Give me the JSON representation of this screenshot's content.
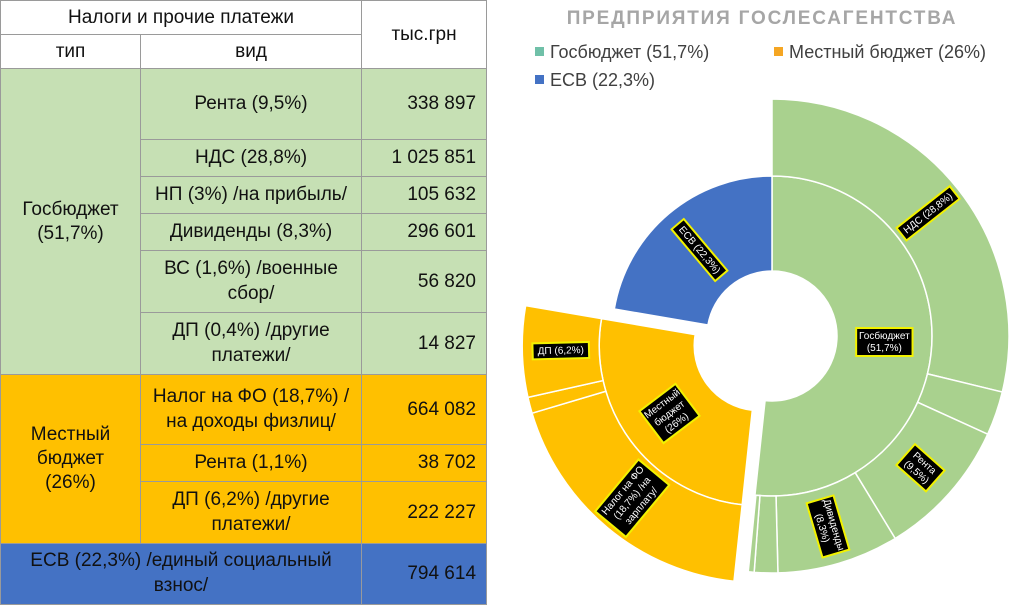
{
  "table": {
    "title": "Налоги и прочие платежи",
    "col_type": "тип",
    "col_kind": "вид",
    "col_value": "тыс.грн",
    "groups": [
      {
        "type": "Госбюджет (51,7%)",
        "color": "#c6e0b4",
        "rows": [
          {
            "kind": "Рента (9,5%)",
            "value": "338 897"
          },
          {
            "kind": "НДС (28,8%)",
            "value": "1 025 851"
          },
          {
            "kind": "НП (3%) /на прибыль/",
            "value": "105 632"
          },
          {
            "kind": "Дивиденды (8,3%)",
            "value": "296 601"
          },
          {
            "kind": "ВС (1,6%) /военные сбор/",
            "value": "56 820"
          },
          {
            "kind": "ДП (0,4%) /другие платежи/",
            "value": "14 827"
          }
        ]
      },
      {
        "type": "Местный бюджет (26%)",
        "color": "#ffc000",
        "rows": [
          {
            "kind": "Налог на ФО (18,7%) /на доходы физлиц/",
            "value": "664 082"
          },
          {
            "kind": "Рента (1,1%)",
            "value": "38 702"
          },
          {
            "kind": "ДП (6,2%) /другие платежи/",
            "value": "222 227"
          }
        ]
      }
    ],
    "esv": {
      "label": "ЕСВ (22,3%) /единый социальный взнос/",
      "value": "794 614",
      "color": "#4472c4"
    }
  },
  "chart_data": {
    "type": "sunburst",
    "title": "ПРЕДПРИЯТИЯ ГОСЛЕСАГЕНТСТВА",
    "legend": [
      {
        "name": "Госбюджет (51,7%)",
        "color": "#70c0a8"
      },
      {
        "name": "Местный бюджет (26%)",
        "color": "#f5a623"
      },
      {
        "name": "ЕСВ (22,3%)",
        "color": "#4472c4"
      }
    ],
    "inner": [
      {
        "label": "Госбюджет (51,7%)",
        "value": 51.7,
        "color": "#a9d18e"
      },
      {
        "label": "Местный бюджет (26%)",
        "value": 26,
        "color": "#ffc000"
      },
      {
        "label": "ЕСВ (22,3%)",
        "value": 22.3,
        "color": "#4472c4"
      }
    ],
    "outer": [
      {
        "parent": 0,
        "label": "НДС (28,8%)",
        "value": 28.8
      },
      {
        "parent": 0,
        "label": "",
        "value": 3
      },
      {
        "parent": 0,
        "label": "Рента (9,5%)",
        "value": 9.5
      },
      {
        "parent": 0,
        "label": "Дивиденды (8,3%)",
        "value": 8.3
      },
      {
        "parent": 0,
        "label": "",
        "value": 1.6
      },
      {
        "parent": 0,
        "label": "",
        "value": 0.4
      },
      {
        "parent": 1,
        "label": "Налог на ФО (18,7%) /на зарплату/",
        "value": 18.7
      },
      {
        "parent": 1,
        "label": "",
        "value": 1.1
      },
      {
        "parent": 1,
        "label": "ДП (6,2%)",
        "value": 6.2
      }
    ]
  }
}
